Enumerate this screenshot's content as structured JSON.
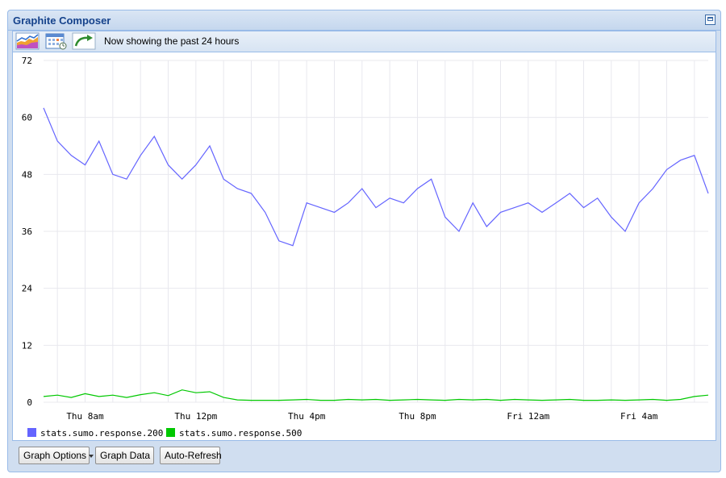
{
  "window": {
    "title": "Graphite Composer"
  },
  "toolbar": {
    "status_text": "Now showing the past 24 hours",
    "buttons": [
      {
        "icon": "graph-icon"
      },
      {
        "icon": "calendar-icon"
      },
      {
        "icon": "refresh-arrow-icon"
      }
    ]
  },
  "footer": {
    "graph_options_label": "Graph Options",
    "graph_data_label": "Graph Data",
    "auto_refresh_label": "Auto-Refresh"
  },
  "chart_data": {
    "type": "line",
    "ylim": [
      0,
      72
    ],
    "y_ticks": [
      0,
      12,
      24,
      36,
      48,
      60,
      72
    ],
    "x_range_hours": [
      6.5,
      30.5
    ],
    "x_tick_labels": [
      "Thu  8am",
      "Thu 12pm",
      "Thu  4pm",
      "Thu  8pm",
      "Fri 12am",
      "Fri  4am"
    ],
    "x_tick_hours": [
      8,
      12,
      16,
      20,
      24,
      28
    ],
    "grid": true,
    "legend_position": "bottom-left",
    "colors": {
      "series_200": "#6464ff",
      "series_500": "#00c800",
      "grid": "#e8e8ee"
    },
    "series": [
      {
        "name": "stats.sumo.response.200",
        "x_hours": [
          6.5,
          7.0,
          7.5,
          8.0,
          8.5,
          9.0,
          9.5,
          10.0,
          10.5,
          11.0,
          11.5,
          12.0,
          12.5,
          13.0,
          13.5,
          14.0,
          14.5,
          15.0,
          15.5,
          16.0,
          16.5,
          17.0,
          17.5,
          18.0,
          18.5,
          19.0,
          19.5,
          20.0,
          20.5,
          21.0,
          21.5,
          22.0,
          22.5,
          23.0,
          23.5,
          24.0,
          24.5,
          25.0,
          25.5,
          26.0,
          26.5,
          27.0,
          27.5,
          28.0,
          28.5,
          29.0,
          29.5,
          30.0,
          30.5
        ],
        "values": [
          62,
          55,
          52,
          50,
          55,
          48,
          47,
          52,
          56,
          50,
          47,
          50,
          54,
          47,
          45,
          44,
          40,
          34,
          33,
          42,
          41,
          40,
          42,
          45,
          41,
          43,
          42,
          45,
          47,
          39,
          36,
          42,
          37,
          40,
          41,
          42,
          40,
          42,
          44,
          41,
          43,
          39,
          36,
          42,
          45,
          49,
          51,
          52,
          44
        ]
      },
      {
        "name": "stats.sumo.response.500",
        "x_hours": [
          6.5,
          7.0,
          7.5,
          8.0,
          8.5,
          9.0,
          9.5,
          10.0,
          10.5,
          11.0,
          11.5,
          12.0,
          12.5,
          13.0,
          13.5,
          14.0,
          14.5,
          15.0,
          15.5,
          16.0,
          16.5,
          17.0,
          17.5,
          18.0,
          18.5,
          19.0,
          19.5,
          20.0,
          20.5,
          21.0,
          21.5,
          22.0,
          22.5,
          23.0,
          23.5,
          24.0,
          24.5,
          25.0,
          25.5,
          26.0,
          26.5,
          27.0,
          27.5,
          28.0,
          28.5,
          29.0,
          29.5,
          30.0,
          30.5
        ],
        "values": [
          1.2,
          1.5,
          1.0,
          1.8,
          1.2,
          1.5,
          1.0,
          1.6,
          2.0,
          1.4,
          2.6,
          2.0,
          2.2,
          1.0,
          0.5,
          0.4,
          0.4,
          0.4,
          0.5,
          0.6,
          0.4,
          0.4,
          0.6,
          0.5,
          0.6,
          0.4,
          0.5,
          0.6,
          0.5,
          0.4,
          0.6,
          0.5,
          0.6,
          0.4,
          0.6,
          0.5,
          0.4,
          0.5,
          0.6,
          0.4,
          0.4,
          0.5,
          0.4,
          0.5,
          0.6,
          0.4,
          0.6,
          1.2,
          1.5
        ]
      }
    ]
  }
}
